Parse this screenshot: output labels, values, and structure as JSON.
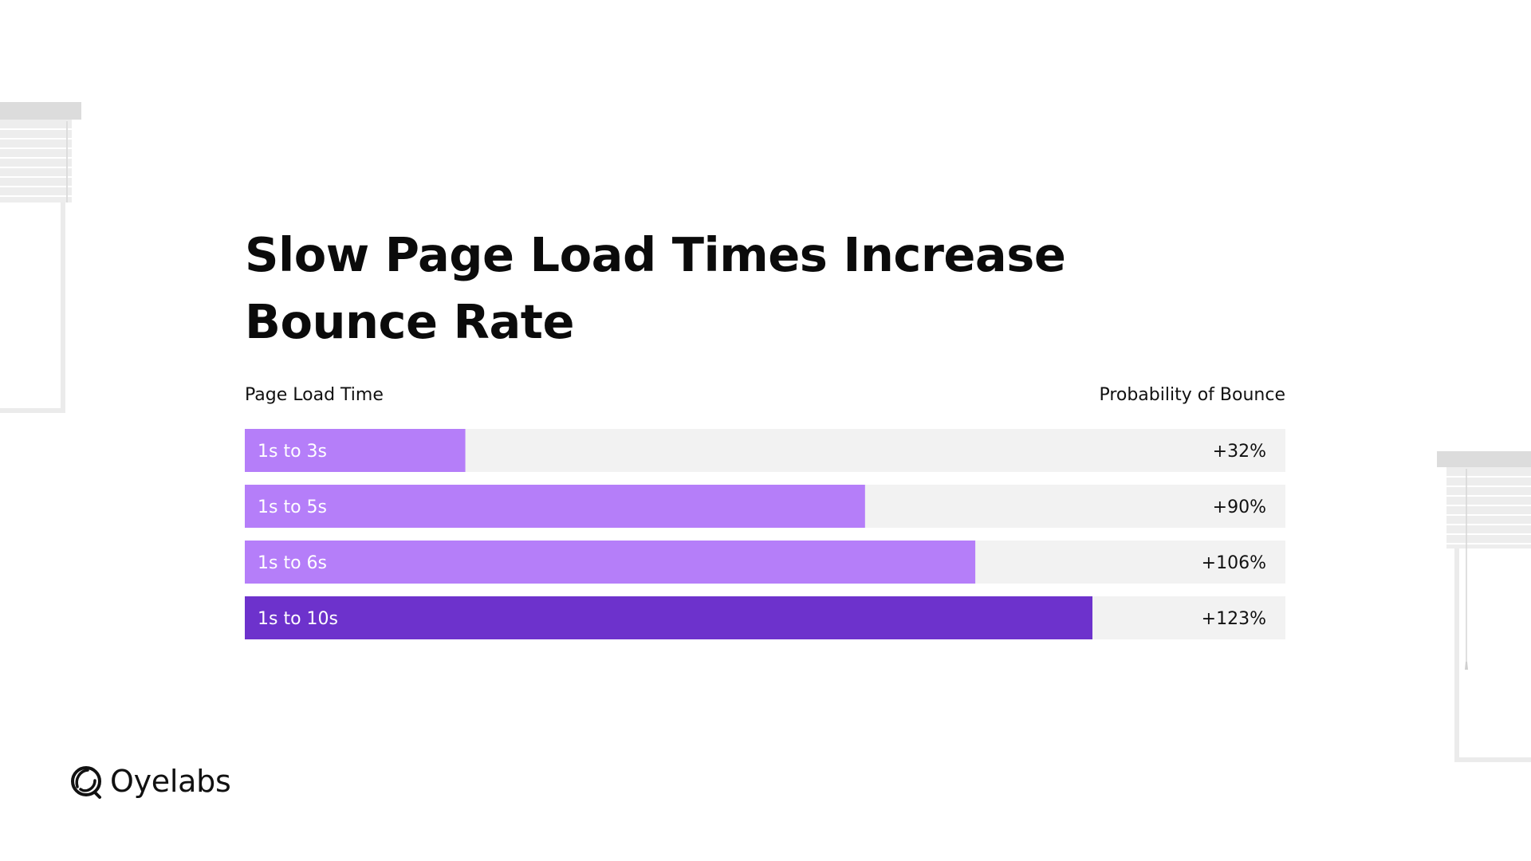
{
  "chart_data": {
    "type": "bar",
    "orientation": "horizontal",
    "title": "Slow Page Load Times Increase Bounce Rate",
    "xlabel": "Probability of Bounce",
    "ylabel": "Page Load Time",
    "categories": [
      "1s to 3s",
      "1s to 5s",
      "1s to 6s",
      "1s to 10s"
    ],
    "values": [
      32,
      90,
      106,
      123
    ],
    "value_labels": [
      "+32%",
      "+90%",
      "+106%",
      "+123%"
    ],
    "unit": "%",
    "xlim": [
      0,
      151
    ],
    "grid": false,
    "legend": "none",
    "colors": {
      "bars": [
        "#b57ef9",
        "#b57ef9",
        "#b57ef9",
        "#6d32cc"
      ],
      "track": "#f2f2f2",
      "bar_label": "#ffffff",
      "value_label": "#111111"
    }
  },
  "brand": {
    "name": "Oyelabs",
    "logo_icon": "oyelabs-logo-icon"
  }
}
